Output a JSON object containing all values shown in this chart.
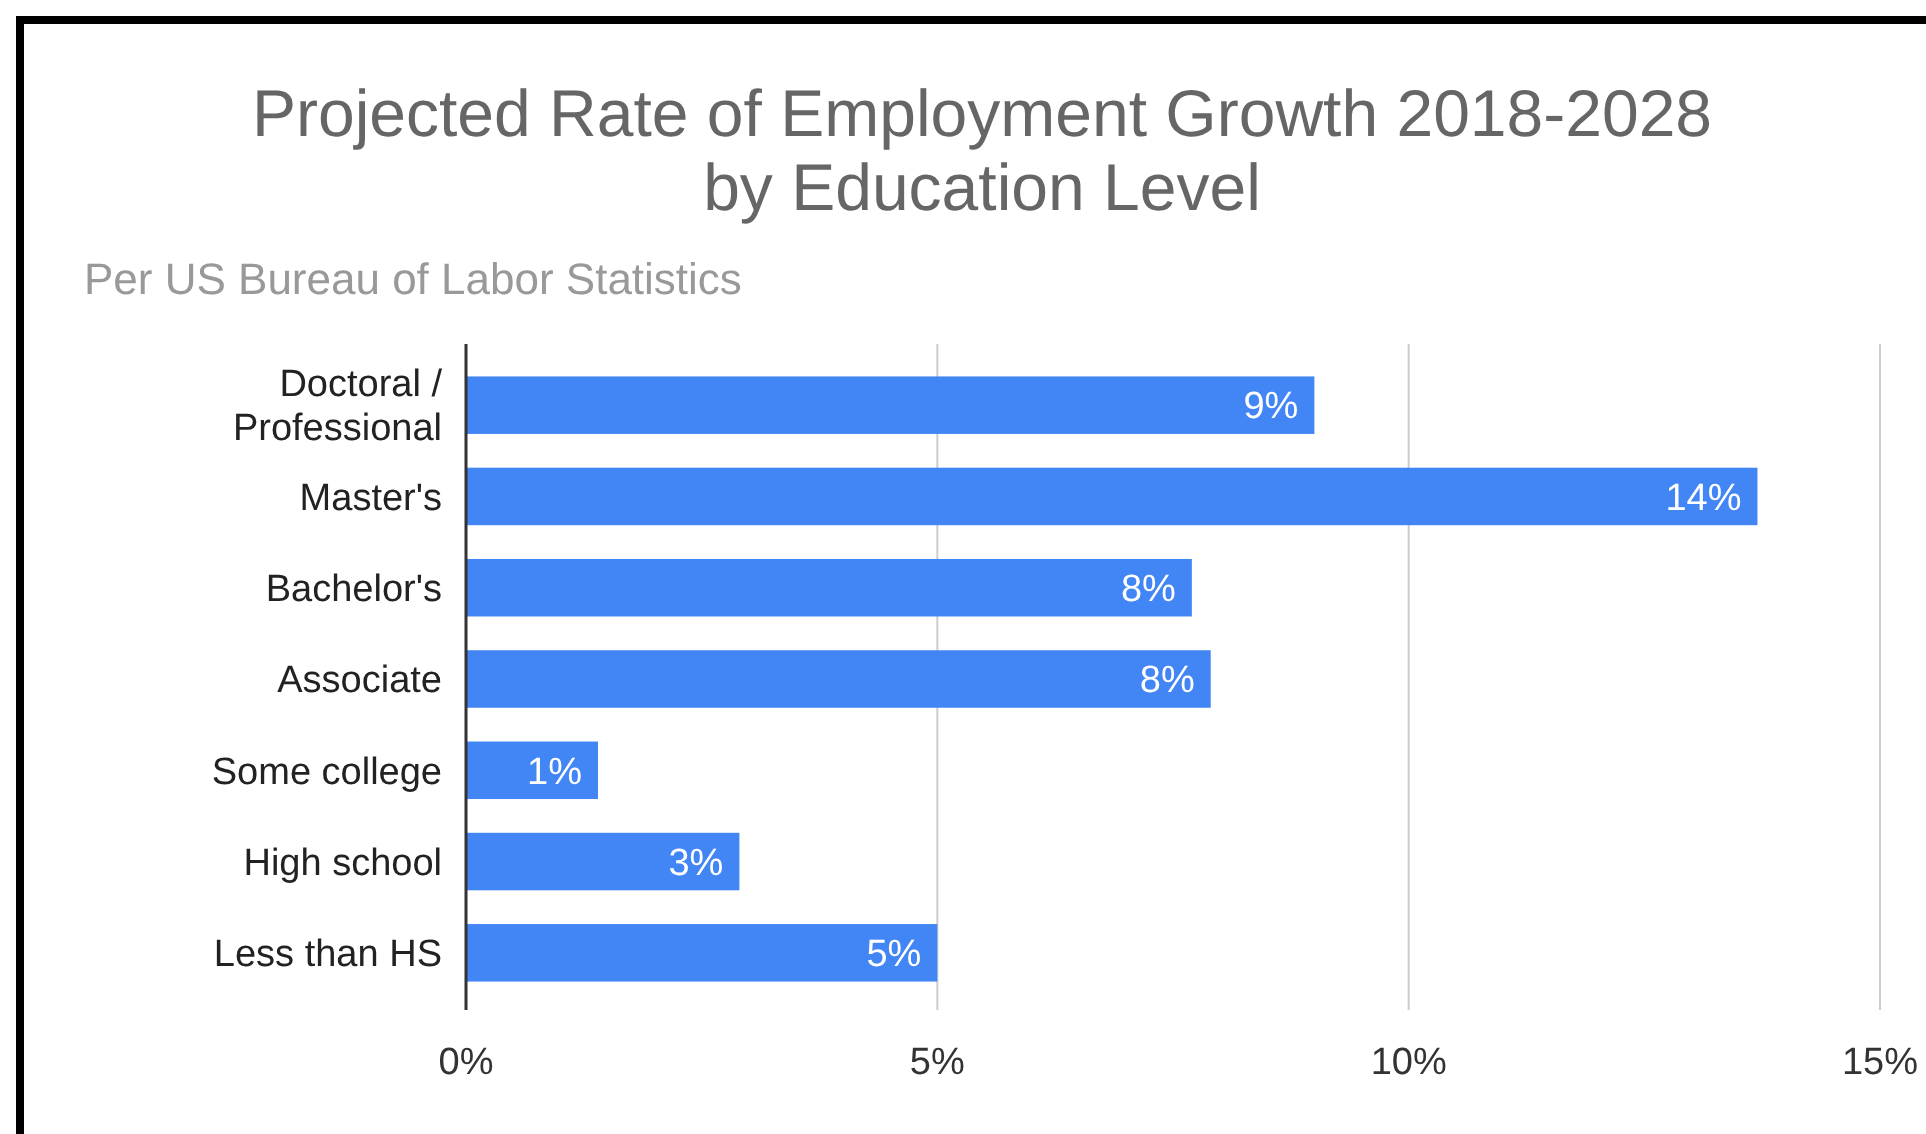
{
  "chart_data": {
    "type": "bar",
    "orientation": "horizontal",
    "title": "Projected Rate of Employment Growth 2018-2028\nby Education Level",
    "subtitle": "Per US Bureau of Labor Statistics",
    "categories": [
      "Doctoral / Professional",
      "Master's",
      "Bachelor's",
      "Associate",
      "Some college",
      "High school",
      "Less than HS"
    ],
    "values": [
      9.0,
      13.7,
      7.7,
      7.9,
      1.4,
      2.9,
      5.0
    ],
    "value_labels": [
      "9%",
      "14%",
      "8%",
      "8%",
      "1%",
      "3%",
      "5%"
    ],
    "color": "#4285f4",
    "xlim": [
      0,
      15
    ],
    "xticks": [
      {
        "value": 0,
        "label": "0%"
      },
      {
        "value": 5,
        "label": "5%"
      },
      {
        "value": 10,
        "label": "10%"
      },
      {
        "value": 15,
        "label": "15%"
      }
    ],
    "grid": "x"
  }
}
